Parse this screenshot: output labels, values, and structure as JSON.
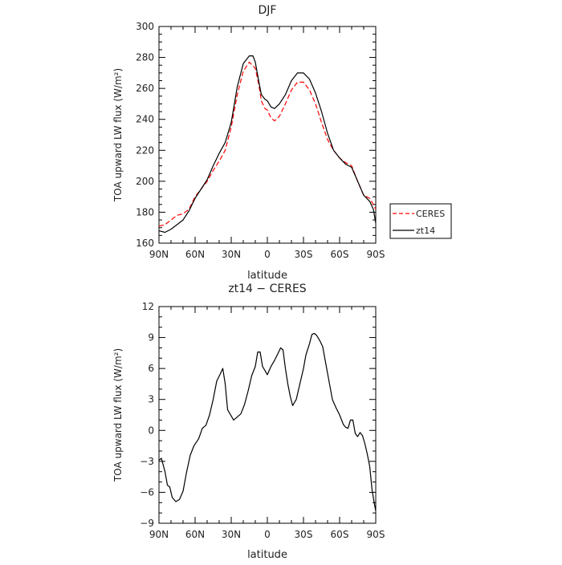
{
  "chart_data": [
    {
      "type": "line",
      "title": "DJF",
      "xlabel": "latitude",
      "ylabel": "TOA upward LW flux (W/m²)",
      "xlim": [
        90,
        -90
      ],
      "ylim": [
        160,
        300
      ],
      "x_ticks": [
        90,
        60,
        30,
        0,
        -30,
        -60,
        -90
      ],
      "x_tick_labels": [
        "90N",
        "60N",
        "30N",
        "0",
        "30S",
        "60S",
        "90S"
      ],
      "y_ticks": [
        160,
        180,
        200,
        220,
        240,
        260,
        280,
        300
      ],
      "y_tick_labels": [
        "160",
        "180",
        "200",
        "220",
        "240",
        "260",
        "280",
        "300"
      ],
      "grid": false,
      "legend_position": "outside-right",
      "series": [
        {
          "name": "CERES",
          "color": "#ff0000",
          "dashed": true,
          "points": [
            [
              90,
              171
            ],
            [
              85,
              172
            ],
            [
              80,
              175
            ],
            [
              75,
              178
            ],
            [
              70,
              179
            ],
            [
              65,
              182
            ],
            [
              60,
              190
            ],
            [
              55,
              195
            ],
            [
              50,
              200
            ],
            [
              45,
              207
            ],
            [
              40,
              213
            ],
            [
              35,
              220
            ],
            [
              30,
              235
            ],
            [
              25,
              256
            ],
            [
              20,
              271
            ],
            [
              15,
              277
            ],
            [
              10,
              273
            ],
            [
              7,
              262
            ],
            [
              5,
              252
            ],
            [
              2,
              247
            ],
            [
              0,
              246
            ],
            [
              -3,
              241
            ],
            [
              -6,
              239
            ],
            [
              -10,
              242
            ],
            [
              -15,
              250
            ],
            [
              -20,
              259
            ],
            [
              -25,
              264
            ],
            [
              -30,
              264
            ],
            [
              -35,
              259
            ],
            [
              -40,
              250
            ],
            [
              -45,
              238
            ],
            [
              -50,
              227
            ],
            [
              -55,
              220
            ],
            [
              -60,
              215
            ],
            [
              -65,
              212
            ],
            [
              -70,
              210
            ],
            [
              -75,
              200
            ],
            [
              -80,
              191
            ],
            [
              -85,
              189
            ],
            [
              -88,
              185
            ],
            [
              -90,
              182
            ]
          ]
        },
        {
          "name": "zt14",
          "color": "#000000",
          "dashed": false,
          "points": [
            [
              90,
              168
            ],
            [
              85,
              167
            ],
            [
              80,
              169
            ],
            [
              75,
              172
            ],
            [
              70,
              175
            ],
            [
              65,
              181
            ],
            [
              60,
              189
            ],
            [
              55,
              195
            ],
            [
              50,
              201
            ],
            [
              45,
              210
            ],
            [
              40,
              218
            ],
            [
              35,
              225
            ],
            [
              30,
              238
            ],
            [
              25,
              261
            ],
            [
              20,
              276
            ],
            [
              15,
              281
            ],
            [
              12,
              281
            ],
            [
              10,
              277
            ],
            [
              7,
              264
            ],
            [
              5,
              256
            ],
            [
              2,
              253
            ],
            [
              0,
              252
            ],
            [
              -3,
              248
            ],
            [
              -6,
              247
            ],
            [
              -10,
              250
            ],
            [
              -15,
              256
            ],
            [
              -20,
              265
            ],
            [
              -25,
              270
            ],
            [
              -30,
              270
            ],
            [
              -35,
              266
            ],
            [
              -40,
              257
            ],
            [
              -45,
              245
            ],
            [
              -50,
              231
            ],
            [
              -55,
              220
            ],
            [
              -60,
              215
            ],
            [
              -65,
              211
            ],
            [
              -70,
              209
            ],
            [
              -75,
              200
            ],
            [
              -80,
              191
            ],
            [
              -85,
              187
            ],
            [
              -88,
              182
            ],
            [
              -90,
              173
            ]
          ]
        }
      ]
    },
    {
      "type": "line",
      "title": "zt14 − CERES",
      "xlabel": "latitude",
      "ylabel": "TOA upward LW flux (W/m²)",
      "xlim": [
        90,
        -90
      ],
      "ylim": [
        -9,
        12
      ],
      "x_ticks": [
        90,
        60,
        30,
        0,
        -30,
        -60,
        -90
      ],
      "x_tick_labels": [
        "90N",
        "60N",
        "30N",
        "0",
        "30S",
        "60S",
        "90S"
      ],
      "y_ticks": [
        -9,
        -6,
        -3,
        0,
        3,
        6,
        9,
        12
      ],
      "y_tick_labels": [
        "−9",
        "−6",
        "−3",
        "0",
        "3",
        "6",
        "9",
        "12"
      ],
      "grid": false,
      "series": [
        {
          "name": "",
          "color": "#000000",
          "dashed": false,
          "points": [
            [
              90,
              -2.9
            ],
            [
              88,
              -2.7
            ],
            [
              85,
              -4.0
            ],
            [
              83,
              -5.3
            ],
            [
              81,
              -5.5
            ],
            [
              79,
              -6.5
            ],
            [
              76,
              -6.9
            ],
            [
              73,
              -6.7
            ],
            [
              70,
              -5.9
            ],
            [
              67,
              -4.0
            ],
            [
              64,
              -2.4
            ],
            [
              61,
              -1.5
            ],
            [
              57,
              -0.8
            ],
            [
              54,
              0.2
            ],
            [
              51,
              0.5
            ],
            [
              48,
              1.5
            ],
            [
              45,
              3.0
            ],
            [
              42,
              4.8
            ],
            [
              39,
              5.5
            ],
            [
              37,
              6.0
            ],
            [
              35,
              4.5
            ],
            [
              33,
              2.0
            ],
            [
              30,
              1.4
            ],
            [
              28,
              1.0
            ],
            [
              25,
              1.3
            ],
            [
              22,
              1.6
            ],
            [
              19,
              2.5
            ],
            [
              16,
              3.8
            ],
            [
              13,
              5.3
            ],
            [
              10,
              6.2
            ],
            [
              8,
              7.6
            ],
            [
              6,
              7.6
            ],
            [
              4,
              6.2
            ],
            [
              2,
              5.8
            ],
            [
              0,
              5.4
            ],
            [
              -3,
              6.2
            ],
            [
              -6,
              6.8
            ],
            [
              -9,
              7.5
            ],
            [
              -11,
              8.0
            ],
            [
              -13,
              7.8
            ],
            [
              -15,
              6.0
            ],
            [
              -17,
              4.5
            ],
            [
              -19,
              3.3
            ],
            [
              -21,
              2.4
            ],
            [
              -24,
              3.0
            ],
            [
              -27,
              4.5
            ],
            [
              -30,
              6.0
            ],
            [
              -32,
              7.3
            ],
            [
              -35,
              8.4
            ],
            [
              -37,
              9.3
            ],
            [
              -39,
              9.4
            ],
            [
              -41,
              9.2
            ],
            [
              -44,
              8.6
            ],
            [
              -46,
              8.1
            ],
            [
              -48,
              6.8
            ],
            [
              -51,
              4.9
            ],
            [
              -54,
              3.0
            ],
            [
              -57,
              2.2
            ],
            [
              -60,
              1.5
            ],
            [
              -63,
              0.6
            ],
            [
              -65,
              0.3
            ],
            [
              -67,
              0.2
            ],
            [
              -69,
              1.0
            ],
            [
              -71,
              1.0
            ],
            [
              -73,
              -0.3
            ],
            [
              -75,
              -0.6
            ],
            [
              -77,
              -0.2
            ],
            [
              -79,
              -0.5
            ],
            [
              -81,
              -1.3
            ],
            [
              -83,
              -2.3
            ],
            [
              -85,
              -3.5
            ],
            [
              -87,
              -5.8
            ],
            [
              -89,
              -7.2
            ],
            [
              -90,
              -7.8
            ]
          ]
        }
      ]
    }
  ]
}
